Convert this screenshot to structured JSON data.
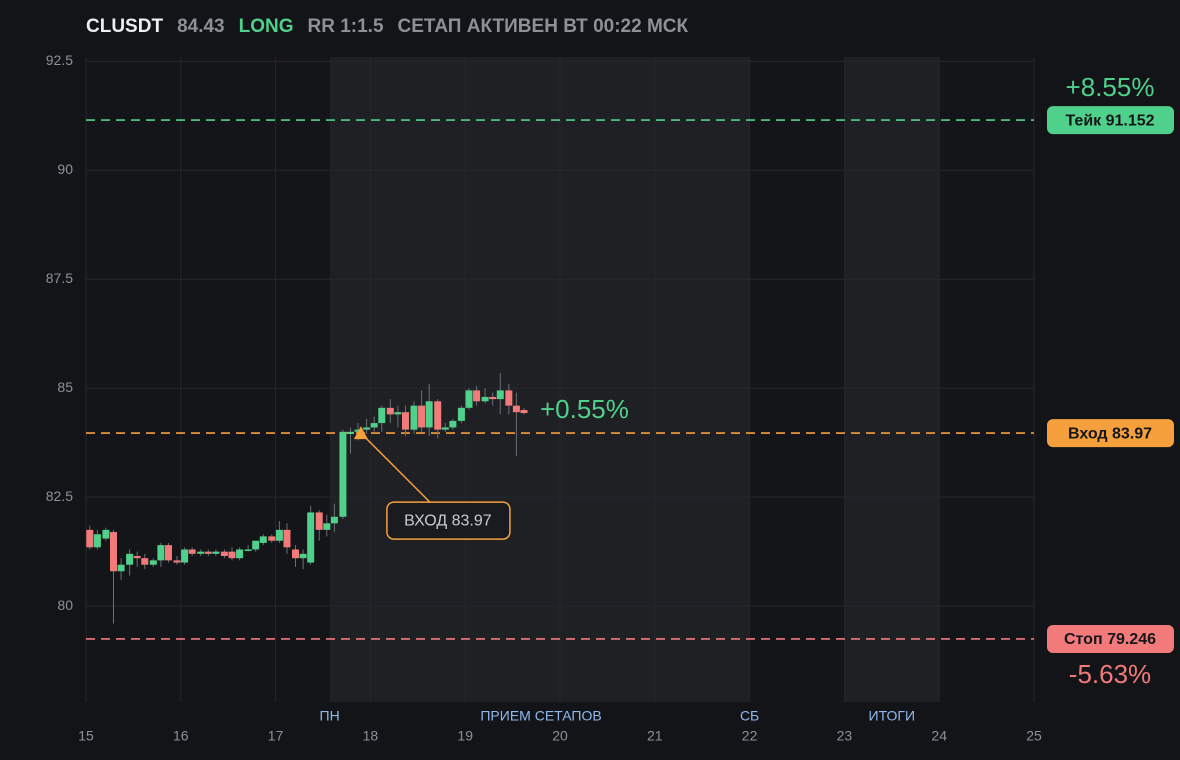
{
  "header": {
    "symbol": "CLUSDT",
    "price": "84.43",
    "side": "LONG",
    "rr": "RR 1:1.5",
    "status": "СЕТАП АКТИВЕН ВТ 00:22 МСК"
  },
  "chart_data": {
    "type": "candlestick",
    "x": [
      15.04,
      15.12,
      15.21,
      15.29,
      15.37,
      15.46,
      15.54,
      15.62,
      15.71,
      15.79,
      15.87,
      15.96,
      16.04,
      16.12,
      16.21,
      16.29,
      16.37,
      16.46,
      16.54,
      16.62,
      16.71,
      16.79,
      16.87,
      16.96,
      17.04,
      17.12,
      17.21,
      17.29,
      17.37,
      17.46,
      17.54,
      17.62,
      17.71,
      17.79,
      17.87,
      17.96,
      18.04,
      18.12,
      18.21,
      18.29,
      18.37,
      18.46,
      18.54,
      18.62,
      18.71,
      18.79,
      18.87,
      18.96,
      19.04,
      19.12,
      19.21,
      19.29,
      19.37,
      19.46,
      19.54,
      19.62
    ],
    "open": [
      81.75,
      81.35,
      81.55,
      81.7,
      80.8,
      80.95,
      81.15,
      81.1,
      80.95,
      81.05,
      81.4,
      81.05,
      81.0,
      81.3,
      81.2,
      81.25,
      81.2,
      81.25,
      81.25,
      81.1,
      81.3,
      81.3,
      81.45,
      81.6,
      81.5,
      81.75,
      81.3,
      81.1,
      81.0,
      82.15,
      81.75,
      81.9,
      82.05,
      83.95,
      84.0,
      84.05,
      84.1,
      84.2,
      84.55,
      84.4,
      84.45,
      84.05,
      84.6,
      84.1,
      84.7,
      84.05,
      84.1,
      84.25,
      84.55,
      84.95,
      84.7,
      84.8,
      84.75,
      84.95,
      84.6,
      84.5
    ],
    "high": [
      81.85,
      81.75,
      81.8,
      81.75,
      81.1,
      81.3,
      81.25,
      81.2,
      81.1,
      81.45,
      81.45,
      81.15,
      81.35,
      81.35,
      81.3,
      81.3,
      81.3,
      81.3,
      81.35,
      81.35,
      81.4,
      81.5,
      81.65,
      81.65,
      81.95,
      81.9,
      81.4,
      81.3,
      82.3,
      82.2,
      82.1,
      82.35,
      84.05,
      84.1,
      84.2,
      84.3,
      84.35,
      84.6,
      84.75,
      84.6,
      84.6,
      84.7,
      84.95,
      85.1,
      84.75,
      84.2,
      84.3,
      84.6,
      85.0,
      85.05,
      85.0,
      84.9,
      85.35,
      85.1,
      84.9,
      84.55
    ],
    "low": [
      81.3,
      81.3,
      81.5,
      79.6,
      80.6,
      80.7,
      80.9,
      80.85,
      80.9,
      80.9,
      81.0,
      80.95,
      80.95,
      81.15,
      81.15,
      81.15,
      81.15,
      81.1,
      81.05,
      81.05,
      81.25,
      81.25,
      81.4,
      81.45,
      81.45,
      81.2,
      80.9,
      80.85,
      80.95,
      81.5,
      81.6,
      81.7,
      82.0,
      83.5,
      83.8,
      83.95,
      84.0,
      84.0,
      84.2,
      84.1,
      83.9,
      83.95,
      84.0,
      83.9,
      83.85,
      84.0,
      84.05,
      84.2,
      84.5,
      84.6,
      84.65,
      84.6,
      84.4,
      84.4,
      83.45,
      84.4
    ],
    "close": [
      81.35,
      81.65,
      81.75,
      80.8,
      80.95,
      81.2,
      81.1,
      80.95,
      81.05,
      81.4,
      81.05,
      81.0,
      81.3,
      81.2,
      81.25,
      81.2,
      81.25,
      81.15,
      81.1,
      81.3,
      81.3,
      81.5,
      81.6,
      81.5,
      81.75,
      81.35,
      81.1,
      81.2,
      82.15,
      81.75,
      81.9,
      82.05,
      84.0,
      84.0,
      84.05,
      84.1,
      84.2,
      84.55,
      84.4,
      84.45,
      84.05,
      84.6,
      84.1,
      84.7,
      84.05,
      84.1,
      84.25,
      84.55,
      84.95,
      84.7,
      84.8,
      84.75,
      84.95,
      84.6,
      84.45,
      84.43
    ],
    "up_color": "#4fd18b",
    "down_color": "#f27a7a",
    "xlim": [
      15,
      25
    ],
    "xticks": [
      15,
      16,
      17,
      18,
      19,
      20,
      21,
      22,
      23,
      24,
      25
    ],
    "ylim": [
      77.8,
      92.6
    ],
    "yticks": [
      80,
      82.5,
      85,
      87.5,
      90,
      92.5
    ],
    "grid": true,
    "shaded": [
      [
        17.57,
        22
      ],
      [
        23,
        24
      ]
    ],
    "sessions": [
      {
        "label": "ПН",
        "x": 17.57
      },
      {
        "label": "ПРИЕМ СЕТАПОВ",
        "x": 19.8
      },
      {
        "label": "СБ",
        "x": 22
      },
      {
        "label": "ИТОГИ",
        "x": 23.5
      }
    ],
    "levels": [
      {
        "label": "Тейк 91.152",
        "value": 91.152,
        "color": "#4fd18b",
        "pct": "+8.55%"
      },
      {
        "label": "Вход 83.97",
        "value": 83.97,
        "color": "#f5a03c"
      },
      {
        "label": "Стоп 79.246",
        "value": 79.246,
        "color": "#f27a7a",
        "pct": "-5.63%"
      }
    ],
    "entry_marker": {
      "text": "ВХОД 83.97",
      "x": 17.9,
      "y": 83.97
    },
    "change_label": "+0.55%"
  }
}
